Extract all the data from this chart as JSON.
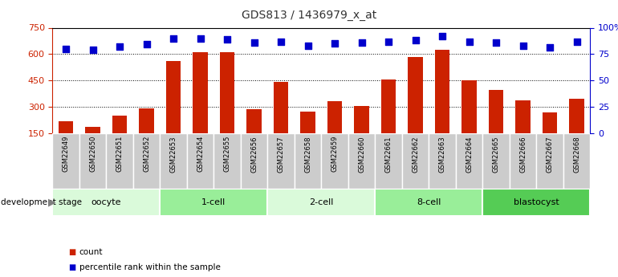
{
  "title": "GDS813 / 1436979_x_at",
  "samples": [
    "GSM22649",
    "GSM22650",
    "GSM22651",
    "GSM22652",
    "GSM22653",
    "GSM22654",
    "GSM22655",
    "GSM22656",
    "GSM22657",
    "GSM22658",
    "GSM22659",
    "GSM22660",
    "GSM22661",
    "GSM22662",
    "GSM22663",
    "GSM22664",
    "GSM22665",
    "GSM22666",
    "GSM22667",
    "GSM22668"
  ],
  "counts": [
    215,
    185,
    250,
    290,
    560,
    610,
    610,
    285,
    440,
    270,
    330,
    305,
    455,
    585,
    625,
    450,
    395,
    335,
    265,
    345
  ],
  "percentiles": [
    80,
    79,
    82,
    84,
    90,
    90,
    89,
    86,
    87,
    83,
    85,
    86,
    87,
    88,
    92,
    87,
    86,
    83,
    81,
    87
  ],
  "groups": [
    {
      "label": "oocyte",
      "start": 0,
      "end": 4,
      "color": "#dafada"
    },
    {
      "label": "1-cell",
      "start": 4,
      "end": 8,
      "color": "#99ee99"
    },
    {
      "label": "2-cell",
      "start": 8,
      "end": 12,
      "color": "#dafada"
    },
    {
      "label": "8-cell",
      "start": 12,
      "end": 16,
      "color": "#99ee99"
    },
    {
      "label": "blastocyst",
      "start": 16,
      "end": 20,
      "color": "#55cc55"
    }
  ],
  "bar_color": "#cc2200",
  "dot_color": "#0000cc",
  "ylim_left": [
    150,
    750
  ],
  "yticks_left": [
    150,
    300,
    450,
    600,
    750
  ],
  "grid_yticks": [
    300,
    450,
    600
  ],
  "ylim_right": [
    0,
    100
  ],
  "yticks_right": [
    0,
    25,
    50,
    75,
    100
  ],
  "ylabel_left_color": "#cc2200",
  "ylabel_right_color": "#0000cc",
  "grid_color": "#000000",
  "bg_color": "#ffffff",
  "bar_width": 0.55,
  "dot_size": 35,
  "label_bg_color": "#cccccc"
}
